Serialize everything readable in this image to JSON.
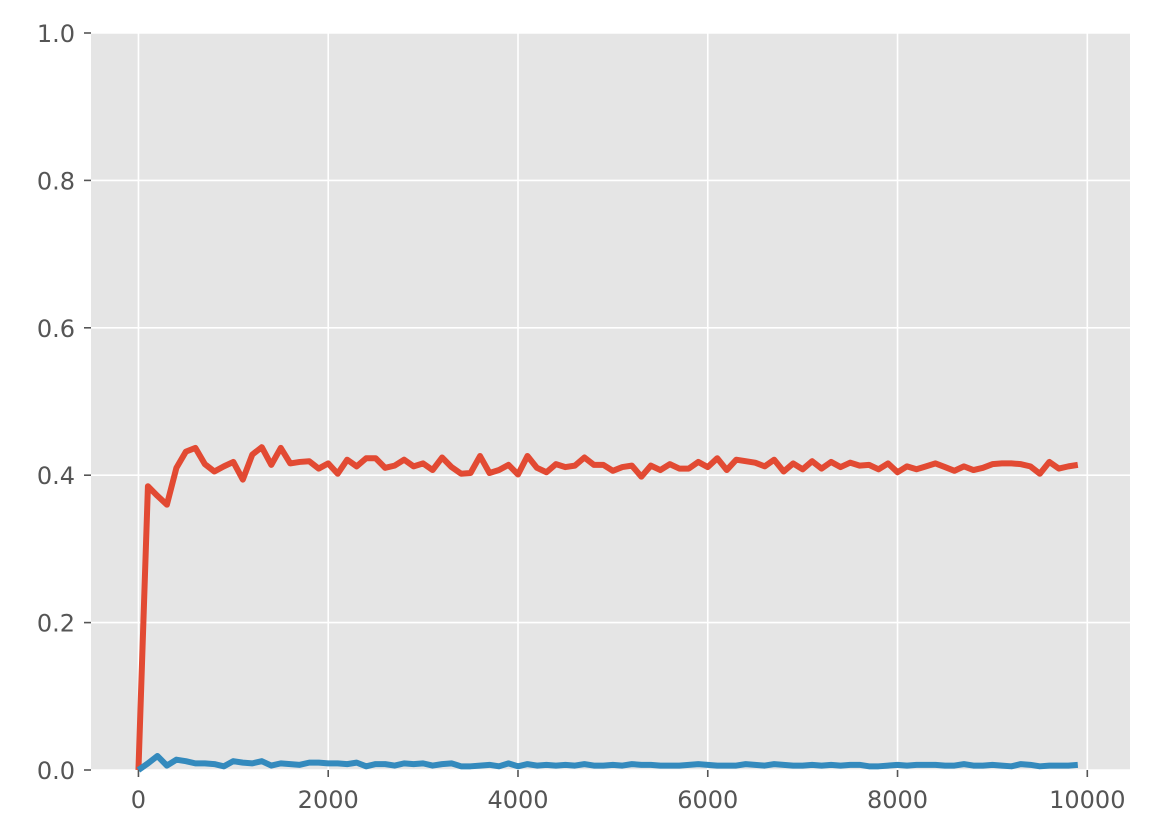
{
  "chart_data": {
    "type": "line",
    "title": "",
    "xlabel": "",
    "ylabel": "",
    "xlim": [
      -500,
      10450
    ],
    "ylim": [
      0,
      1.0
    ],
    "grid": true,
    "background": "#E5E5E5",
    "grid_color": "#FFFFFF",
    "x_ticks": [
      0,
      2000,
      4000,
      6000,
      8000,
      10000
    ],
    "x_tick_labels": [
      "0",
      "2000",
      "4000",
      "6000",
      "8000",
      "10000"
    ],
    "y_ticks": [
      0.0,
      0.2,
      0.4,
      0.6,
      0.8,
      1.0
    ],
    "y_tick_labels": [
      "0.0",
      "0.2",
      "0.4",
      "0.6",
      "0.8",
      "1.0"
    ],
    "x": [
      0,
      100,
      200,
      300,
      400,
      500,
      600,
      700,
      800,
      900,
      1000,
      1100,
      1200,
      1300,
      1400,
      1500,
      1600,
      1700,
      1800,
      1900,
      2000,
      2100,
      2200,
      2300,
      2400,
      2500,
      2600,
      2700,
      2800,
      2900,
      3000,
      3100,
      3200,
      3300,
      3400,
      3500,
      3600,
      3700,
      3800,
      3900,
      4000,
      4100,
      4200,
      4300,
      4400,
      4500,
      4600,
      4700,
      4800,
      4900,
      5000,
      5100,
      5200,
      5300,
      5400,
      5500,
      5600,
      5700,
      5800,
      5900,
      6000,
      6100,
      6200,
      6300,
      6400,
      6500,
      6600,
      6700,
      6800,
      6900,
      7000,
      7100,
      7200,
      7300,
      7400,
      7500,
      7600,
      7700,
      7800,
      7900,
      8000,
      8100,
      8200,
      8300,
      8400,
      8500,
      8600,
      8700,
      8800,
      8900,
      9000,
      9100,
      9200,
      9300,
      9400,
      9500,
      9600,
      9700,
      9800,
      9900
    ],
    "series": [
      {
        "color": "#E24A33",
        "values": [
          0.0,
          0.385,
          0.372,
          0.36,
          0.41,
          0.432,
          0.437,
          0.415,
          0.405,
          0.412,
          0.418,
          0.394,
          0.428,
          0.438,
          0.414,
          0.437,
          0.416,
          0.418,
          0.419,
          0.409,
          0.416,
          0.402,
          0.421,
          0.412,
          0.423,
          0.423,
          0.41,
          0.413,
          0.421,
          0.412,
          0.416,
          0.407,
          0.424,
          0.411,
          0.402,
          0.403,
          0.426,
          0.403,
          0.407,
          0.414,
          0.401,
          0.426,
          0.41,
          0.404,
          0.415,
          0.411,
          0.413,
          0.424,
          0.414,
          0.414,
          0.406,
          0.411,
          0.413,
          0.398,
          0.413,
          0.407,
          0.415,
          0.409,
          0.409,
          0.418,
          0.411,
          0.423,
          0.407,
          0.421,
          0.419,
          0.417,
          0.412,
          0.421,
          0.405,
          0.416,
          0.408,
          0.419,
          0.409,
          0.418,
          0.411,
          0.417,
          0.413,
          0.414,
          0.408,
          0.416,
          0.404,
          0.412,
          0.408,
          0.412,
          0.416,
          0.411,
          0.406,
          0.412,
          0.407,
          0.41,
          0.415,
          0.416,
          0.416,
          0.415,
          0.412,
          0.402,
          0.418,
          0.409,
          0.412,
          0.414
        ]
      },
      {
        "color": "#348ABD",
        "values": [
          0.0,
          0.009,
          0.019,
          0.006,
          0.014,
          0.012,
          0.009,
          0.009,
          0.008,
          0.005,
          0.012,
          0.01,
          0.009,
          0.012,
          0.006,
          0.009,
          0.008,
          0.007,
          0.01,
          0.01,
          0.009,
          0.009,
          0.008,
          0.01,
          0.005,
          0.008,
          0.008,
          0.006,
          0.009,
          0.008,
          0.009,
          0.006,
          0.008,
          0.009,
          0.005,
          0.005,
          0.006,
          0.007,
          0.005,
          0.009,
          0.005,
          0.008,
          0.006,
          0.007,
          0.006,
          0.007,
          0.006,
          0.008,
          0.006,
          0.006,
          0.007,
          0.006,
          0.008,
          0.007,
          0.007,
          0.006,
          0.006,
          0.006,
          0.007,
          0.008,
          0.007,
          0.006,
          0.006,
          0.006,
          0.008,
          0.007,
          0.006,
          0.008,
          0.007,
          0.006,
          0.006,
          0.007,
          0.006,
          0.007,
          0.006,
          0.007,
          0.007,
          0.005,
          0.005,
          0.006,
          0.007,
          0.006,
          0.007,
          0.007,
          0.007,
          0.006,
          0.006,
          0.008,
          0.006,
          0.006,
          0.007,
          0.006,
          0.005,
          0.008,
          0.007,
          0.005,
          0.006,
          0.006,
          0.006,
          0.007
        ]
      }
    ]
  }
}
